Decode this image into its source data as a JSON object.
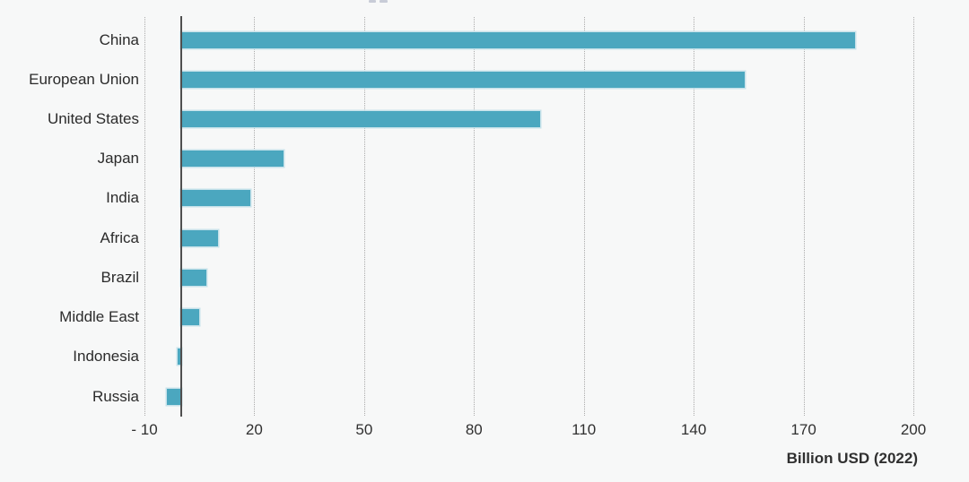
{
  "colors": {
    "background": "#f7f8f8",
    "bar_fill": "#4BA7BF",
    "bar_edge": "#BEDEE8",
    "gridline": "#ABABAB",
    "axis_line": "#4F4F4F",
    "label_text": "#2B2B2B",
    "tick_text": "#303030"
  },
  "chart_data": {
    "type": "bar",
    "orientation": "horizontal",
    "title": "",
    "categories": [
      "China",
      "European Union",
      "United States",
      "Japan",
      "India",
      "Africa",
      "Brazil",
      "Middle East",
      "Indonesia",
      "Russia"
    ],
    "values": [
      184,
      154,
      98,
      28,
      19,
      10,
      7,
      5,
      -1,
      -4
    ],
    "xlabel": "Billion USD (2022)",
    "ylabel": "",
    "xticks": [
      -10,
      20,
      50,
      80,
      110,
      140,
      170,
      200
    ],
    "xtick_labels": [
      "- 10",
      "20",
      "50",
      "80",
      "110",
      "140",
      "170",
      "200"
    ],
    "xlim": [
      -13,
      215
    ],
    "grid": "vertical dotted gridlines at x ticks",
    "zero_axis_line": true,
    "legend": "none",
    "bar_color": "#4BA7BF",
    "unit": "Billion USD (2022)"
  }
}
